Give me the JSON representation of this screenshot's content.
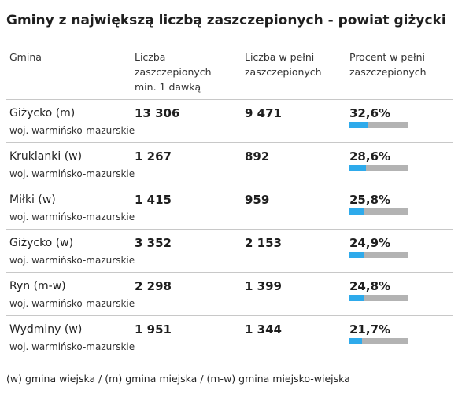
{
  "title": "Gminy z największą liczbą zaszczepionych - powiat giżycki",
  "headers": {
    "gmina": "Gmina",
    "dose1": [
      "Liczba",
      "zaszczepionych",
      "min. 1 dawką"
    ],
    "full": [
      "Liczba w pełni",
      "zaszczepionych"
    ],
    "percent": [
      "Procent w pełni",
      "zaszczepionych"
    ]
  },
  "chart_data": {
    "type": "table",
    "columns": [
      "Gmina",
      "Liczba zaszczepionych min. 1 dawką",
      "Liczba w pełni zaszczepionych",
      "Procent w pełni zaszczepionych"
    ],
    "rows": [
      {
        "name": "Giżycko (m)",
        "region": "woj. warmińsko-mazurskie",
        "dose1": "13 306",
        "full": "9 471",
        "percent_label": "32,6%",
        "percent": 32.6
      },
      {
        "name": "Kruklanki (w)",
        "region": "woj. warmińsko-mazurskie",
        "dose1": "1 267",
        "full": "892",
        "percent_label": "28,6%",
        "percent": 28.6
      },
      {
        "name": "Miłki (w)",
        "region": "woj. warmińsko-mazurskie",
        "dose1": "1 415",
        "full": "959",
        "percent_label": "25,8%",
        "percent": 25.8
      },
      {
        "name": "Giżycko (w)",
        "region": "woj. warmińsko-mazurskie",
        "dose1": "3 352",
        "full": "2 153",
        "percent_label": "24,9%",
        "percent": 24.9
      },
      {
        "name": "Ryn (m-w)",
        "region": "woj. warmińsko-mazurskie",
        "dose1": "2 298",
        "full": "1 399",
        "percent_label": "24,8%",
        "percent": 24.8
      },
      {
        "name": "Wydminy (w)",
        "region": "woj. warmińsko-mazurskie",
        "dose1": "1 951",
        "full": "1 344",
        "percent_label": "21,7%",
        "percent": 21.7
      }
    ],
    "bar_max": 100,
    "bar_colors": {
      "fill": "#2eaaeb",
      "track": "#b3b3b3"
    }
  },
  "footnote": "(w) gmina wiejska / (m) gmina miejska / (m-w) gmina miejsko-wiejska"
}
